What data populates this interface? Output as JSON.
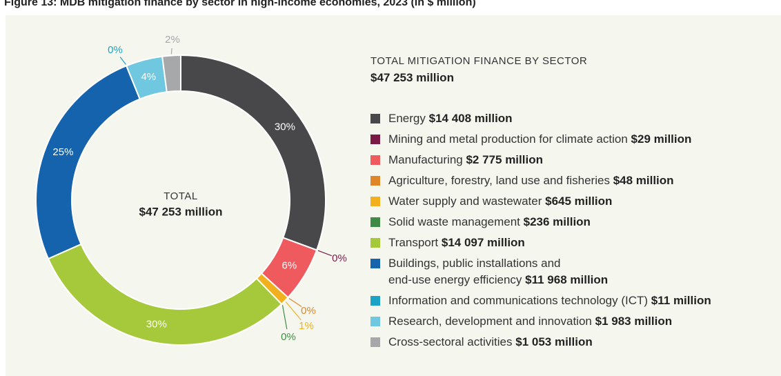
{
  "chart_data": {
    "type": "pie",
    "title": "Figure 13: MDB mitigation finance by sector in high-income economies, 2023 (in $ million)",
    "center_label": "TOTAL",
    "center_value": "$47 253 million",
    "legend_title": "TOTAL MITIGATION FINANCE BY SECTOR",
    "legend_value": "$47 253 million",
    "categories": [
      "Energy",
      "Mining and metal production for climate action",
      "Manufacturing",
      "Agriculture, forestry, land use and fisheries",
      "Water supply and wastewater",
      "Solid waste management",
      "Transport",
      "Buildings, public installations and\nend-use energy efficiency",
      "Information and communications technology (ICT)",
      "Research, development and innovation",
      "Cross-sectoral activities"
    ],
    "amounts": [
      "$14 408 million",
      "$29 million",
      "$2 775 million",
      "$48 million",
      "$645 million",
      "$236 million",
      "$14 097 million",
      "$11 968 million",
      "$11 million",
      "$1 983 million",
      "$1 053 million"
    ],
    "values": [
      30,
      0,
      6,
      0,
      1,
      0,
      30,
      25,
      0,
      4,
      2
    ],
    "value_labels": [
      "30%",
      "0%",
      "6%",
      "0%",
      "1%",
      "0%",
      "30%",
      "25%",
      "0%",
      "4%",
      "2%"
    ],
    "colors": [
      "#48484a",
      "#7b1a46",
      "#ee5a5e",
      "#df8629",
      "#f2b01e",
      "#3f8b46",
      "#a6c93b",
      "#1562ad",
      "#1aa3c4",
      "#6fc7e0",
      "#a7a8aa"
    ]
  }
}
